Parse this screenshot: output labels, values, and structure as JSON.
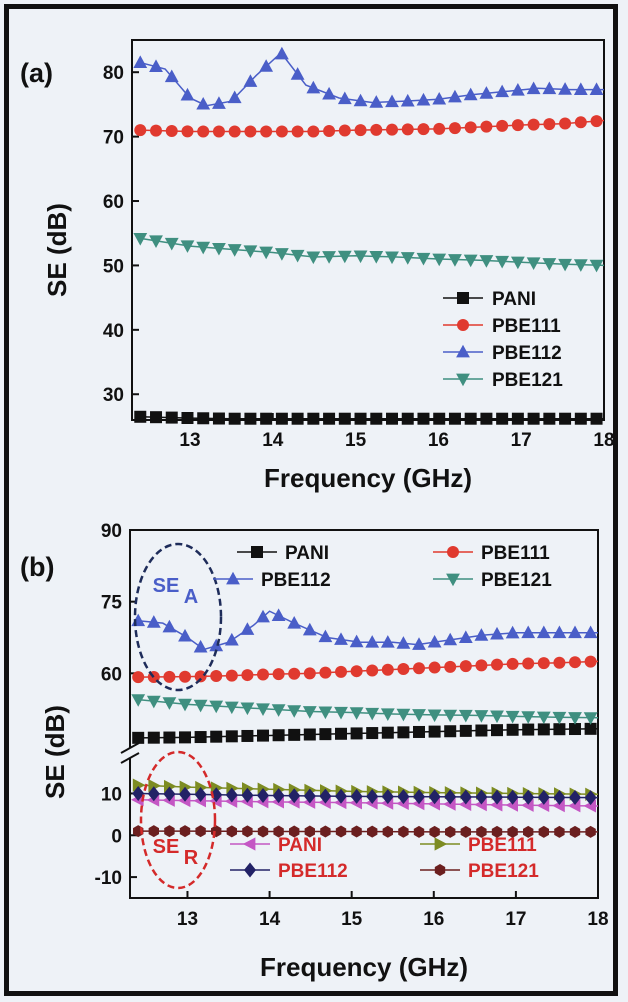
{
  "chart_data": [
    {
      "panel_label": "(a)",
      "type": "line",
      "xlabel": "Frequency (GHz)",
      "ylabel": "SE (dB)",
      "xlim": [
        12.3,
        18.0
      ],
      "ylim": [
        26,
        85
      ],
      "xticks": [
        "13",
        "14",
        "15",
        "16",
        "17",
        "18"
      ],
      "yticks": [
        "30",
        "40",
        "50",
        "60",
        "70",
        "80"
      ],
      "legend_position": "lower-right",
      "series": [
        {
          "name": "PANI",
          "marker": "square",
          "color": "#111111",
          "x": [
            12.4,
            13.0,
            13.5,
            14.0,
            14.5,
            15.0,
            15.5,
            16.0,
            16.5,
            17.0,
            17.5,
            18.0
          ],
          "y": [
            26.5,
            26.3,
            26.2,
            26.2,
            26.2,
            26.2,
            26.2,
            26.2,
            26.2,
            26.2,
            26.2,
            26.2
          ]
        },
        {
          "name": "PBE111",
          "marker": "circle",
          "color": "#e03a2f",
          "x": [
            12.4,
            13.0,
            13.5,
            14.0,
            14.5,
            15.0,
            15.5,
            16.0,
            16.5,
            17.0,
            17.5,
            18.0
          ],
          "y": [
            71.0,
            70.8,
            70.8,
            70.8,
            70.8,
            71.0,
            71.1,
            71.2,
            71.5,
            71.8,
            72.0,
            72.5
          ]
        },
        {
          "name": "PBE112",
          "marker": "triangle-up",
          "color": "#4a5ec8",
          "x": [
            12.4,
            12.7,
            13.0,
            13.2,
            13.5,
            13.8,
            14.1,
            14.4,
            14.8,
            15.2,
            15.6,
            16.0,
            16.4,
            16.8,
            17.2,
            17.6,
            18.0
          ],
          "y": [
            81.5,
            80.5,
            76.0,
            74.8,
            75.5,
            79.5,
            83.0,
            78.0,
            76.0,
            75.3,
            75.5,
            75.8,
            76.5,
            77.0,
            77.5,
            77.3,
            77.3
          ]
        },
        {
          "name": "PBE121",
          "marker": "triangle-down",
          "color": "#3f8f80",
          "x": [
            12.4,
            13.0,
            13.5,
            14.0,
            14.5,
            15.0,
            15.5,
            16.0,
            16.5,
            17.0,
            17.5,
            18.0
          ],
          "y": [
            54.2,
            53.0,
            52.5,
            52.0,
            51.3,
            51.5,
            51.3,
            51.0,
            50.8,
            50.5,
            50.2,
            50.0
          ]
        }
      ]
    },
    {
      "panel_label": "(b)",
      "type": "line",
      "xlabel": "Frequency (GHz)",
      "ylabel": "SE (dB)",
      "xlim": [
        12.3,
        18.0
      ],
      "broken_y_axis": true,
      "yticks": [
        "-10",
        "0",
        "10",
        "60",
        "75",
        "90"
      ],
      "xticks": [
        "13",
        "14",
        "15",
        "16",
        "17",
        "18"
      ],
      "annotations": [
        "SE",
        "A",
        "SE",
        "R"
      ],
      "legend_top": [
        {
          "name": "PANI",
          "marker": "square",
          "color": "#111111"
        },
        {
          "name": "PBE111",
          "marker": "circle",
          "color": "#e03a2f"
        },
        {
          "name": "PBE112",
          "marker": "triangle-up",
          "color": "#4a5ec8"
        },
        {
          "name": "PBE121",
          "marker": "triangle-down",
          "color": "#3f8f80"
        }
      ],
      "legend_bottom": [
        {
          "name": "PANI",
          "marker": "triangle-left",
          "color": "#c457c4"
        },
        {
          "name": "PBE111",
          "marker": "triangle-right",
          "color": "#7d8c22"
        },
        {
          "name": "PBE112",
          "marker": "diamond",
          "color": "#222266"
        },
        {
          "name": "PBE121",
          "marker": "hexagon",
          "color": "#6b1f1f"
        }
      ],
      "series_SE_A": [
        {
          "name": "PANI",
          "x": [
            12.4,
            13.0,
            13.5,
            14.0,
            14.5,
            15.0,
            15.5,
            16.0,
            16.5,
            17.0,
            17.5,
            18.0
          ],
          "y": [
            46.5,
            46.6,
            46.8,
            47.0,
            47.2,
            47.4,
            47.6,
            47.8,
            48.0,
            48.2,
            48.3,
            48.4
          ]
        },
        {
          "name": "PBE111",
          "x": [
            12.4,
            13.0,
            13.5,
            14.0,
            14.5,
            15.0,
            15.5,
            16.0,
            16.5,
            17.0,
            17.5,
            18.0
          ],
          "y": [
            59.2,
            59.3,
            59.5,
            59.8,
            60.0,
            60.4,
            60.8,
            61.2,
            61.6,
            62.0,
            62.2,
            62.5
          ]
        },
        {
          "name": "PBE112",
          "x": [
            12.4,
            12.7,
            13.0,
            13.2,
            13.5,
            13.8,
            14.0,
            14.3,
            14.7,
            15.1,
            15.5,
            15.8,
            16.2,
            16.6,
            17.0,
            17.5,
            18.0
          ],
          "y": [
            71.0,
            70.5,
            67.5,
            65.0,
            66.5,
            70.0,
            73.0,
            70.5,
            67.5,
            66.5,
            66.5,
            66.0,
            67.0,
            68.0,
            68.5,
            68.5,
            68.5
          ]
        },
        {
          "name": "PBE121",
          "x": [
            12.4,
            13.0,
            13.5,
            14.0,
            14.5,
            15.0,
            15.5,
            16.0,
            16.5,
            17.0,
            17.5,
            18.0
          ],
          "y": [
            54.5,
            53.5,
            53.0,
            52.5,
            52.0,
            51.8,
            51.5,
            51.3,
            51.2,
            51.0,
            50.8,
            50.7
          ]
        }
      ],
      "series_SE_R": [
        {
          "name": "PANI",
          "x": [
            12.4,
            13.0,
            14.0,
            15.0,
            16.0,
            17.0,
            18.0
          ],
          "y": [
            8.5,
            8.3,
            8.0,
            7.8,
            7.5,
            7.2,
            7.0
          ]
        },
        {
          "name": "PBE111",
          "x": [
            12.4,
            13.0,
            14.0,
            15.0,
            16.0,
            17.0,
            18.0
          ],
          "y": [
            12.0,
            11.5,
            11.0,
            10.5,
            10.2,
            10.0,
            9.8
          ]
        },
        {
          "name": "PBE112",
          "x": [
            12.4,
            13.0,
            14.0,
            15.0,
            16.0,
            17.0,
            18.0
          ],
          "y": [
            10.0,
            9.8,
            9.5,
            9.3,
            9.2,
            9.1,
            9.0
          ]
        },
        {
          "name": "PBE121",
          "x": [
            12.4,
            13.0,
            14.0,
            15.0,
            16.0,
            17.0,
            18.0
          ],
          "y": [
            1.0,
            1.0,
            0.9,
            0.9,
            0.8,
            0.8,
            0.8
          ]
        }
      ]
    }
  ]
}
